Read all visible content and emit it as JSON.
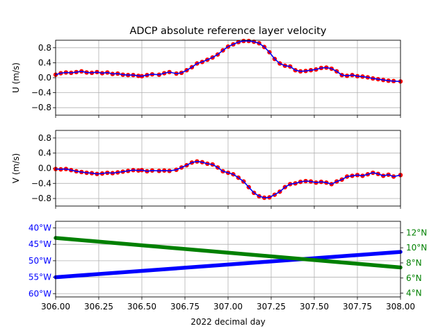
{
  "figure": {
    "title": "ADCP absolute reference layer velocity",
    "xlabel": "2022 decimal day"
  },
  "chart_data": [
    {
      "type": "line",
      "panel": "U",
      "ylabel": "U (m/s)",
      "ylim": [
        -1.0,
        1.0
      ],
      "yticks": [
        0.8,
        0.4,
        0.0,
        -0.4,
        -0.8
      ],
      "ytick_labels": [
        "0.8",
        "0.4",
        "0.0",
        "−0.4",
        "−0.8"
      ],
      "xlim": [
        306.0,
        308.0
      ],
      "grid": true,
      "series": [
        {
          "color": "#ff0000",
          "style": "dots",
          "x": [
            306.0,
            306.03,
            306.06,
            306.09,
            306.12,
            306.15,
            306.18,
            306.21,
            306.24,
            306.27,
            306.3,
            306.33,
            306.36,
            306.39,
            306.42,
            306.45,
            306.48,
            306.5,
            306.53,
            306.56,
            306.6,
            306.63,
            306.66,
            306.7,
            306.73,
            306.76,
            306.79,
            306.82,
            306.85,
            306.88,
            306.91,
            306.94,
            306.97,
            307.0,
            307.03,
            307.06,
            307.09,
            307.12,
            307.15,
            307.18,
            307.21,
            307.24,
            307.27,
            307.3,
            307.33,
            307.36,
            307.39,
            307.42,
            307.45,
            307.48,
            307.51,
            307.54,
            307.57,
            307.6,
            307.63,
            307.66,
            307.69,
            307.72,
            307.75,
            307.78,
            307.81,
            307.84,
            307.87,
            307.9,
            307.93,
            307.96,
            308.0
          ],
          "y": [
            0.08,
            0.12,
            0.14,
            0.13,
            0.15,
            0.17,
            0.14,
            0.13,
            0.15,
            0.12,
            0.14,
            0.1,
            0.11,
            0.08,
            0.07,
            0.07,
            0.05,
            0.04,
            0.07,
            0.09,
            0.08,
            0.12,
            0.15,
            0.11,
            0.13,
            0.2,
            0.28,
            0.38,
            0.42,
            0.48,
            0.54,
            0.62,
            0.73,
            0.83,
            0.89,
            0.95,
            0.98,
            0.98,
            0.96,
            0.92,
            0.82,
            0.68,
            0.5,
            0.38,
            0.32,
            0.3,
            0.2,
            0.17,
            0.18,
            0.2,
            0.22,
            0.26,
            0.27,
            0.24,
            0.17,
            0.07,
            0.05,
            0.07,
            0.04,
            0.03,
            0.01,
            -0.02,
            -0.04,
            -0.06,
            -0.08,
            -0.09,
            -0.1
          ]
        },
        {
          "color": "#0000ff",
          "style": "line",
          "x": [
            306.0,
            306.03,
            306.06,
            306.09,
            306.12,
            306.15,
            306.18,
            306.21,
            306.24,
            306.27,
            306.3,
            306.33,
            306.36,
            306.39,
            306.42,
            306.45,
            306.48,
            306.5,
            306.53,
            306.56,
            306.6,
            306.63,
            306.66,
            306.7,
            306.73,
            306.76,
            306.79,
            306.82,
            306.85,
            306.88,
            306.91,
            306.94,
            306.97,
            307.0,
            307.03,
            307.06,
            307.09,
            307.12,
            307.15,
            307.18,
            307.21,
            307.24,
            307.27,
            307.3,
            307.33,
            307.36,
            307.39,
            307.42,
            307.45,
            307.48,
            307.51,
            307.54,
            307.57,
            307.6,
            307.63,
            307.66,
            307.69,
            307.72,
            307.75,
            307.78,
            307.81,
            307.84,
            307.87,
            307.9,
            307.93,
            307.96,
            308.0
          ],
          "y": [
            0.08,
            0.12,
            0.14,
            0.13,
            0.15,
            0.17,
            0.14,
            0.13,
            0.15,
            0.12,
            0.14,
            0.1,
            0.11,
            0.08,
            0.07,
            0.07,
            0.05,
            0.04,
            0.07,
            0.09,
            0.08,
            0.12,
            0.15,
            0.11,
            0.13,
            0.2,
            0.28,
            0.38,
            0.42,
            0.48,
            0.54,
            0.62,
            0.73,
            0.83,
            0.89,
            0.95,
            0.98,
            0.98,
            0.96,
            0.92,
            0.82,
            0.68,
            0.5,
            0.38,
            0.32,
            0.3,
            0.2,
            0.17,
            0.18,
            0.2,
            0.22,
            0.26,
            0.27,
            0.24,
            0.17,
            0.07,
            0.05,
            0.07,
            0.04,
            0.03,
            0.01,
            -0.02,
            -0.04,
            -0.06,
            -0.08,
            -0.09,
            -0.1
          ]
        }
      ]
    },
    {
      "type": "line",
      "panel": "V",
      "ylabel": "V (m/s)",
      "ylim": [
        -1.0,
        1.0
      ],
      "yticks": [
        0.8,
        0.4,
        0.0,
        -0.4,
        -0.8
      ],
      "ytick_labels": [
        "0.8",
        "0.4",
        "0.0",
        "−0.4",
        "−0.8"
      ],
      "xlim": [
        306.0,
        308.0
      ],
      "grid": true,
      "series": [
        {
          "color": "#ff0000",
          "style": "dots",
          "x": [
            306.0,
            306.03,
            306.06,
            306.09,
            306.12,
            306.15,
            306.18,
            306.21,
            306.24,
            306.27,
            306.3,
            306.33,
            306.36,
            306.39,
            306.42,
            306.45,
            306.48,
            306.5,
            306.53,
            306.56,
            306.6,
            306.63,
            306.66,
            306.7,
            306.73,
            306.76,
            306.79,
            306.82,
            306.85,
            306.88,
            306.91,
            306.94,
            306.97,
            307.0,
            307.03,
            307.06,
            307.09,
            307.12,
            307.15,
            307.18,
            307.21,
            307.24,
            307.27,
            307.3,
            307.33,
            307.36,
            307.39,
            307.42,
            307.45,
            307.48,
            307.51,
            307.54,
            307.57,
            307.6,
            307.63,
            307.66,
            307.69,
            307.72,
            307.75,
            307.78,
            307.81,
            307.84,
            307.87,
            307.9,
            307.93,
            307.96,
            308.0
          ],
          "y": [
            -0.02,
            -0.03,
            -0.02,
            -0.05,
            -0.08,
            -0.1,
            -0.12,
            -0.13,
            -0.15,
            -0.14,
            -0.12,
            -0.13,
            -0.11,
            -0.09,
            -0.07,
            -0.05,
            -0.06,
            -0.05,
            -0.08,
            -0.06,
            -0.07,
            -0.06,
            -0.07,
            -0.04,
            0.02,
            0.08,
            0.15,
            0.18,
            0.16,
            0.12,
            0.1,
            0.02,
            -0.08,
            -0.12,
            -0.16,
            -0.25,
            -0.35,
            -0.5,
            -0.65,
            -0.74,
            -0.78,
            -0.77,
            -0.7,
            -0.62,
            -0.5,
            -0.42,
            -0.4,
            -0.36,
            -0.34,
            -0.35,
            -0.38,
            -0.36,
            -0.38,
            -0.42,
            -0.35,
            -0.3,
            -0.22,
            -0.2,
            -0.18,
            -0.2,
            -0.16,
            -0.12,
            -0.15,
            -0.2,
            -0.17,
            -0.22,
            -0.18
          ]
        },
        {
          "color": "#0000ff",
          "style": "line",
          "x": [
            306.0,
            306.03,
            306.06,
            306.09,
            306.12,
            306.15,
            306.18,
            306.21,
            306.24,
            306.27,
            306.3,
            306.33,
            306.36,
            306.39,
            306.42,
            306.45,
            306.48,
            306.5,
            306.53,
            306.56,
            306.6,
            306.63,
            306.66,
            306.7,
            306.73,
            306.76,
            306.79,
            306.82,
            306.85,
            306.88,
            306.91,
            306.94,
            306.97,
            307.0,
            307.03,
            307.06,
            307.09,
            307.12,
            307.15,
            307.18,
            307.21,
            307.24,
            307.27,
            307.3,
            307.33,
            307.36,
            307.39,
            307.42,
            307.45,
            307.48,
            307.51,
            307.54,
            307.57,
            307.6,
            307.63,
            307.66,
            307.69,
            307.72,
            307.75,
            307.78,
            307.81,
            307.84,
            307.87,
            307.9,
            307.93,
            307.96,
            308.0
          ],
          "y": [
            -0.02,
            -0.03,
            -0.02,
            -0.05,
            -0.08,
            -0.1,
            -0.12,
            -0.13,
            -0.15,
            -0.14,
            -0.12,
            -0.13,
            -0.11,
            -0.09,
            -0.07,
            -0.05,
            -0.06,
            -0.05,
            -0.08,
            -0.06,
            -0.07,
            -0.06,
            -0.07,
            -0.04,
            0.02,
            0.08,
            0.15,
            0.18,
            0.16,
            0.12,
            0.1,
            0.02,
            -0.08,
            -0.12,
            -0.16,
            -0.25,
            -0.35,
            -0.5,
            -0.65,
            -0.74,
            -0.78,
            -0.77,
            -0.7,
            -0.62,
            -0.5,
            -0.42,
            -0.4,
            -0.36,
            -0.34,
            -0.35,
            -0.38,
            -0.36,
            -0.38,
            -0.42,
            -0.35,
            -0.3,
            -0.22,
            -0.2,
            -0.18,
            -0.2,
            -0.16,
            -0.12,
            -0.15,
            -0.2,
            -0.17,
            -0.22,
            -0.18
          ]
        }
      ]
    },
    {
      "type": "line",
      "panel": "position",
      "xlim": [
        306.0,
        308.0
      ],
      "xticks": [
        306.0,
        306.25,
        306.5,
        306.75,
        307.0,
        307.25,
        307.5,
        307.75,
        308.0
      ],
      "xtick_labels": [
        "306.00",
        "306.25",
        "306.50",
        "306.75",
        "307.00",
        "307.25",
        "307.50",
        "307.75",
        "308.00"
      ],
      "grid": true,
      "left_axis": {
        "color": "#0000ff",
        "ylim": [
          -61,
          -38
        ],
        "yticks": [
          -40,
          -45,
          -50,
          -55,
          -60
        ],
        "ytick_labels": [
          "40°W",
          "45°W",
          "50°W",
          "55°W",
          "60°W"
        ]
      },
      "right_axis": {
        "color": "#008000",
        "ylim": [
          3.5,
          13.5
        ],
        "yticks": [
          12,
          10,
          8,
          6,
          4
        ],
        "ytick_labels": [
          "12°N",
          "10°N",
          "8°N",
          "6°N",
          "4°N"
        ]
      },
      "series": [
        {
          "axis": "left",
          "color": "#0000ff",
          "x": [
            306.0,
            308.0
          ],
          "y": [
            -55.0,
            -47.3
          ]
        },
        {
          "axis": "right",
          "color": "#008000",
          "x": [
            306.0,
            308.0
          ],
          "y": [
            11.3,
            7.4
          ]
        }
      ]
    }
  ]
}
